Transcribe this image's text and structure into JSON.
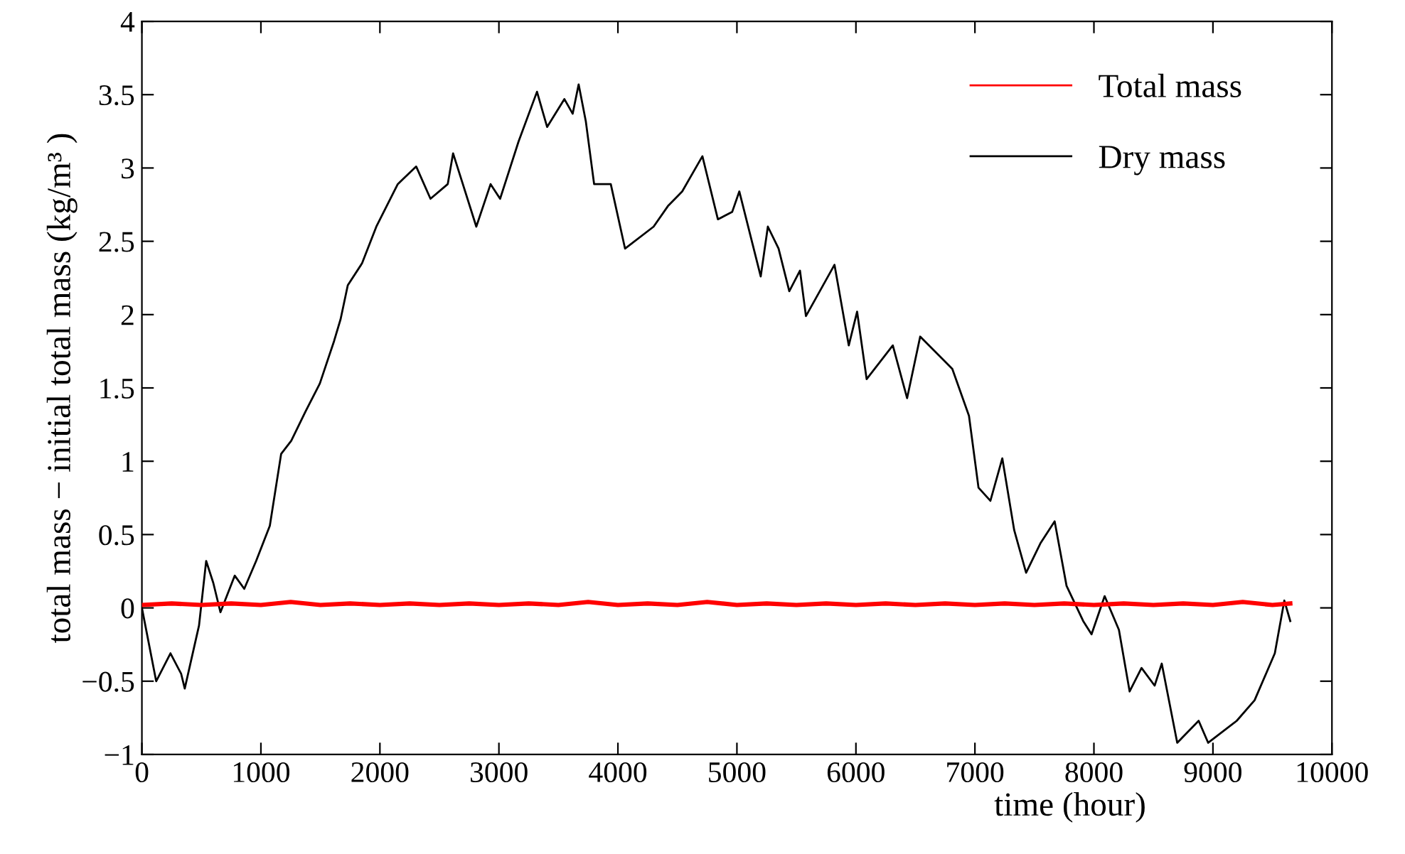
{
  "chart_data": {
    "type": "line",
    "xlabel": "time (hour)",
    "ylabel": "total mass − initial total mass (kg/m³ )",
    "xlim": [
      0,
      10000
    ],
    "xticks": [
      0,
      1000,
      2000,
      3000,
      4000,
      5000,
      6000,
      7000,
      8000,
      9000,
      10000
    ],
    "ylim": [
      -1,
      4
    ],
    "yticks": [
      {
        "value": -1,
        "label": "−1"
      },
      {
        "value": -0.5,
        "label": "−0.5"
      },
      0,
      0.5,
      1,
      1.5,
      2,
      2.5,
      3,
      3.5,
      4
    ],
    "grid": false,
    "legend": "top right",
    "line_style": "solid",
    "marker": "none",
    "series": [
      {
        "name": "Total mass",
        "color": "#ff0000",
        "x": [
          0,
          250,
          500,
          750,
          1000,
          1250,
          1500,
          1750,
          2000,
          2250,
          2500,
          2750,
          3000,
          3250,
          3500,
          3750,
          4000,
          4250,
          4500,
          4750,
          5000,
          5250,
          5500,
          5750,
          6000,
          6250,
          6500,
          6750,
          7000,
          7250,
          7500,
          7750,
          8000,
          8250,
          8500,
          8750,
          9000,
          9250,
          9500,
          9650
        ],
        "values": [
          0.02,
          0.03,
          0.02,
          0.03,
          0.02,
          0.04,
          0.02,
          0.03,
          0.02,
          0.03,
          0.02,
          0.03,
          0.02,
          0.03,
          0.02,
          0.04,
          0.02,
          0.03,
          0.02,
          0.04,
          0.02,
          0.03,
          0.02,
          0.03,
          0.02,
          0.03,
          0.02,
          0.03,
          0.02,
          0.03,
          0.02,
          0.03,
          0.02,
          0.03,
          0.02,
          0.03,
          0.02,
          0.04,
          0.02,
          0.03
        ]
      },
      {
        "name": "Dry mass",
        "color": "#000000",
        "x": [
          0,
          120,
          240,
          330,
          360,
          480,
          540,
          600,
          660,
          780,
          860,
          960,
          1075,
          1170,
          1255,
          1375,
          1495,
          1615,
          1670,
          1730,
          1850,
          1970,
          2150,
          2305,
          2425,
          2570,
          2615,
          2810,
          2930,
          3010,
          3165,
          3320,
          3405,
          3550,
          3620,
          3670,
          3730,
          3800,
          3940,
          4060,
          4300,
          4420,
          4540,
          4710,
          4840,
          4960,
          5020,
          5200,
          5260,
          5350,
          5440,
          5530,
          5580,
          5820,
          5940,
          6010,
          6090,
          6310,
          6430,
          6540,
          6810,
          6950,
          7030,
          7130,
          7230,
          7330,
          7430,
          7550,
          7670,
          7770,
          7910,
          7980,
          8090,
          8210,
          8300,
          8400,
          8510,
          8570,
          8700,
          8880,
          8960,
          9200,
          9350,
          9520,
          9600,
          9650
        ],
        "values": [
          0,
          -0.5,
          -0.31,
          -0.45,
          -0.55,
          -0.12,
          0.32,
          0.17,
          -0.03,
          0.22,
          0.13,
          0.32,
          0.56,
          1.05,
          1.14,
          1.34,
          1.53,
          1.82,
          1.97,
          2.2,
          2.35,
          2.6,
          2.89,
          3.01,
          2.79,
          2.89,
          3.1,
          2.6,
          2.89,
          2.79,
          3.18,
          3.52,
          3.28,
          3.47,
          3.37,
          3.57,
          3.32,
          2.89,
          2.89,
          2.45,
          2.6,
          2.74,
          2.84,
          3.08,
          2.65,
          2.7,
          2.84,
          2.26,
          2.6,
          2.45,
          2.16,
          2.3,
          1.99,
          2.34,
          1.79,
          2.02,
          1.56,
          1.79,
          1.43,
          1.85,
          1.63,
          1.31,
          0.82,
          0.73,
          1.02,
          0.53,
          0.24,
          0.44,
          0.59,
          0.15,
          -0.09,
          -0.18,
          0.08,
          -0.15,
          -0.57,
          -0.41,
          -0.53,
          -0.38,
          -0.92,
          -0.77,
          -0.92,
          -0.77,
          -0.63,
          -0.31,
          0.05,
          -0.09
        ]
      }
    ]
  }
}
